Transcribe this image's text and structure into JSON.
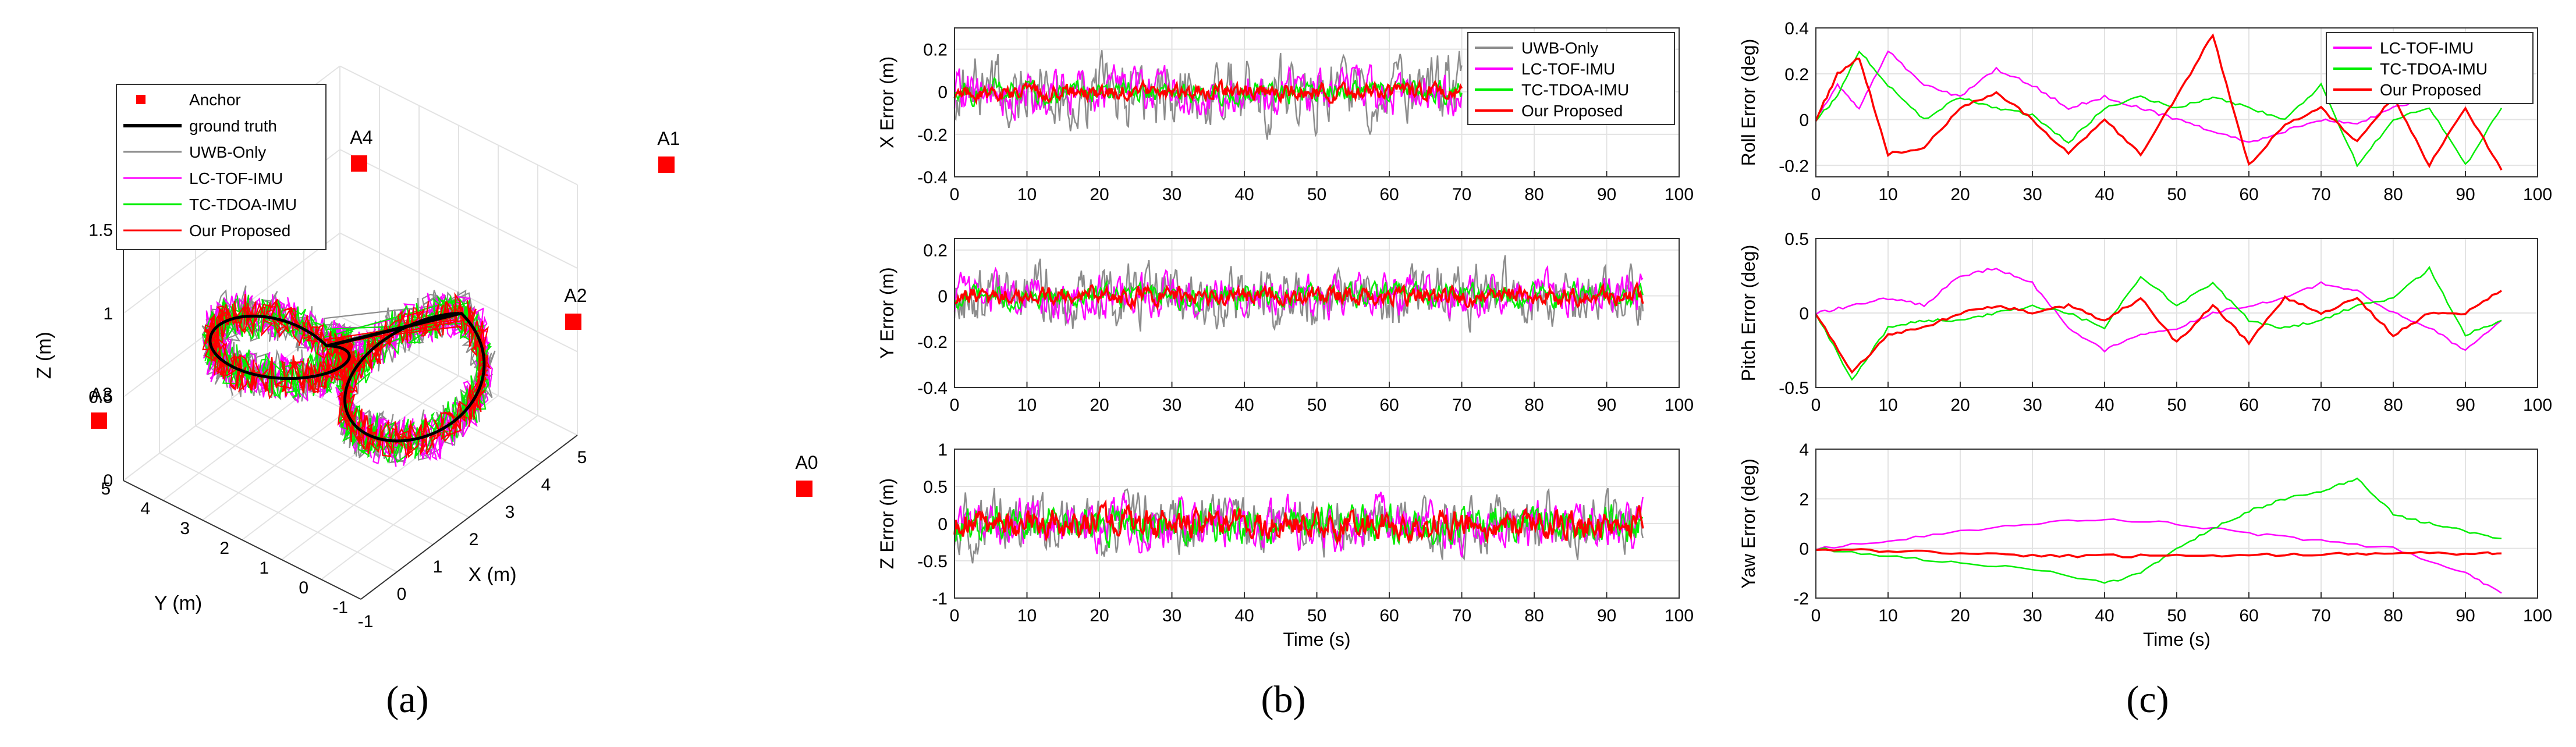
{
  "captions": {
    "a": "(a)",
    "b": "(b)",
    "c": "(c)"
  },
  "colors": {
    "uwb": "#8c8c8c",
    "lc": "#ff00ff",
    "tc": "#00ee00",
    "ours": "#ff0000",
    "truth": "#000000",
    "anchor": "#ff0000"
  },
  "chart_data": [
    {
      "id": "a",
      "type": "scatter",
      "title": "",
      "xlabel": "X (m)",
      "ylabel": "Y (m)",
      "zlabel": "Z (m)",
      "xlim": [
        -1,
        5
      ],
      "ylim": [
        -1,
        5
      ],
      "zlim": [
        0,
        1.5
      ],
      "xticks": [
        "-1",
        "0",
        "1",
        "2",
        "3",
        "4",
        "5"
      ],
      "yticks": [
        "-1",
        "0",
        "1",
        "2",
        "3",
        "4",
        "5"
      ],
      "zticks": [
        "0",
        "0.5",
        "1",
        "1.5"
      ],
      "legend": [
        "Anchor",
        "ground truth",
        "UWB-Only",
        "LC-TOF-IMU",
        "TC-TDOA-IMU",
        "Our Proposed"
      ],
      "anchors": [
        {
          "name": "A0",
          "x": 5,
          "y": -1,
          "z": 0
        },
        {
          "name": "A1",
          "x": 5,
          "y": 5,
          "z": 1.5
        },
        {
          "name": "A3",
          "x": -1,
          "y": 5,
          "z": 0
        },
        {
          "name": "A4",
          "x": -1,
          "y": -1,
          "z": 1.5
        },
        {
          "name": "A2",
          "x": 2,
          "y": 2,
          "z": 0.55
        }
      ],
      "trajectory": {
        "shape": "figure-eight",
        "center1": [
          0.7,
          2.6
        ],
        "center2": [
          2.9,
          1.2
        ],
        "radius": 1.3,
        "z": [
          0.3,
          0.9
        ]
      }
    },
    {
      "id": "b1",
      "type": "line",
      "title": "",
      "xlabel": "",
      "ylabel": "X Error (m)",
      "xlim": [
        0,
        100
      ],
      "ylim": [
        -0.4,
        0.3
      ],
      "xticks": [
        "0",
        "10",
        "20",
        "30",
        "40",
        "50",
        "60",
        "70",
        "80",
        "90",
        "100"
      ],
      "yticks": [
        "-0.4",
        "-0.2",
        "0",
        "0.2"
      ],
      "legend_position": "top-right",
      "series": [
        {
          "name": "UWB-Only",
          "amplitude": 0.12,
          "duration": 70
        },
        {
          "name": "LC-TOF-IMU",
          "amplitude": 0.08,
          "duration": 70
        },
        {
          "name": "TC-TDOA-IMU",
          "amplitude": 0.04,
          "duration": 70
        },
        {
          "name": "Our Proposed",
          "amplitude": 0.03,
          "duration": 70
        }
      ]
    },
    {
      "id": "b2",
      "type": "line",
      "title": "",
      "xlabel": "",
      "ylabel": "Y Error (m)",
      "xlim": [
        0,
        100
      ],
      "ylim": [
        -0.4,
        0.25
      ],
      "xticks": [
        "0",
        "10",
        "20",
        "30",
        "40",
        "50",
        "60",
        "70",
        "80",
        "90",
        "100"
      ],
      "yticks": [
        "-0.4",
        "-0.2",
        "0",
        "0.2"
      ],
      "series": [
        {
          "name": "UWB-Only",
          "amplitude": 0.1,
          "duration": 95
        },
        {
          "name": "LC-TOF-IMU",
          "amplitude": 0.07,
          "duration": 95
        },
        {
          "name": "TC-TDOA-IMU",
          "amplitude": 0.04,
          "duration": 95
        },
        {
          "name": "Our Proposed",
          "amplitude": 0.03,
          "duration": 95
        }
      ]
    },
    {
      "id": "b3",
      "type": "line",
      "title": "",
      "xlabel": "Time (s)",
      "ylabel": "Z Error (m)",
      "xlim": [
        0,
        100
      ],
      "ylim": [
        -1,
        1
      ],
      "xticks": [
        "0",
        "10",
        "20",
        "30",
        "40",
        "50",
        "60",
        "70",
        "80",
        "90",
        "100"
      ],
      "yticks": [
        "-1",
        "-0.5",
        "0",
        "0.5",
        "1"
      ],
      "series": [
        {
          "name": "UWB-Only",
          "amplitude": 0.3,
          "duration": 95
        },
        {
          "name": "LC-TOF-IMU",
          "amplitude": 0.25,
          "duration": 95
        },
        {
          "name": "TC-TDOA-IMU",
          "amplitude": 0.2,
          "duration": 95
        },
        {
          "name": "Our Proposed",
          "amplitude": 0.15,
          "duration": 95
        }
      ]
    },
    {
      "id": "c1",
      "type": "line",
      "title": "",
      "xlabel": "",
      "ylabel": "Roll Error (deg)",
      "xlim": [
        0,
        100
      ],
      "ylim": [
        -0.25,
        0.4
      ],
      "xticks": [
        "0",
        "10",
        "20",
        "30",
        "40",
        "50",
        "60",
        "70",
        "80",
        "90",
        "100"
      ],
      "yticks": [
        "-0.2",
        "0",
        "0.2",
        "0.4"
      ],
      "legend_position": "top-right",
      "series": [
        {
          "name": "LC-TOF-IMU",
          "x": [
            0,
            3,
            6,
            10,
            15,
            20,
            25,
            30,
            35,
            40,
            45,
            50,
            55,
            60,
            65,
            70,
            75,
            80,
            85,
            90,
            95
          ],
          "y": [
            0,
            0.15,
            0.05,
            0.3,
            0.15,
            0.1,
            0.22,
            0.15,
            0.05,
            0.1,
            0.05,
            0.0,
            -0.05,
            -0.1,
            -0.05,
            0.0,
            -0.02,
            0.05,
            0.1,
            0.1,
            0.1
          ]
        },
        {
          "name": "TC-TDOA-IMU",
          "x": [
            0,
            3,
            6,
            10,
            15,
            20,
            25,
            30,
            35,
            40,
            45,
            50,
            55,
            60,
            65,
            70,
            75,
            80,
            85,
            90,
            95
          ],
          "y": [
            0,
            0.1,
            0.3,
            0.15,
            0.0,
            0.1,
            0.05,
            0.02,
            -0.1,
            0.05,
            0.1,
            0.05,
            0.1,
            0.05,
            0.0,
            0.15,
            -0.2,
            0.0,
            0.05,
            -0.2,
            0.05
          ]
        },
        {
          "name": "Our Proposed",
          "x": [
            0,
            3,
            6,
            10,
            15,
            20,
            25,
            30,
            35,
            40,
            45,
            50,
            55,
            60,
            65,
            70,
            75,
            80,
            85,
            90,
            95
          ],
          "y": [
            0,
            0.2,
            0.27,
            -0.15,
            -0.12,
            0.05,
            0.12,
            0.0,
            -0.15,
            0.0,
            -0.15,
            0.1,
            0.37,
            -0.2,
            -0.02,
            0.05,
            -0.1,
            0.1,
            -0.2,
            0.05,
            -0.22
          ]
        }
      ]
    },
    {
      "id": "c2",
      "type": "line",
      "title": "",
      "xlabel": "",
      "ylabel": "Pitch Error (deg)",
      "xlim": [
        0,
        100
      ],
      "ylim": [
        -0.5,
        0.5
      ],
      "xticks": [
        "0",
        "10",
        "20",
        "30",
        "40",
        "50",
        "60",
        "70",
        "80",
        "90",
        "100"
      ],
      "yticks": [
        "-0.5",
        "0",
        "0.5"
      ],
      "series": [
        {
          "name": "LC-TOF-IMU",
          "x": [
            0,
            5,
            10,
            15,
            20,
            25,
            30,
            35,
            40,
            45,
            50,
            55,
            60,
            65,
            70,
            75,
            80,
            85,
            90,
            95
          ],
          "y": [
            0,
            0.05,
            0.1,
            0.05,
            0.25,
            0.3,
            0.2,
            -0.1,
            -0.25,
            -0.15,
            -0.1,
            0.0,
            0.05,
            0.1,
            0.2,
            0.15,
            0.0,
            -0.1,
            -0.25,
            -0.05
          ]
        },
        {
          "name": "TC-TDOA-IMU",
          "x": [
            0,
            5,
            10,
            15,
            20,
            25,
            30,
            35,
            40,
            45,
            50,
            55,
            60,
            65,
            70,
            75,
            80,
            85,
            90,
            95
          ],
          "y": [
            0,
            -0.45,
            -0.1,
            -0.05,
            -0.05,
            0.0,
            0.05,
            0.0,
            -0.1,
            0.25,
            0.05,
            0.2,
            -0.05,
            -0.1,
            -0.05,
            0.05,
            0.1,
            0.3,
            -0.15,
            -0.05
          ]
        },
        {
          "name": "Our Proposed",
          "x": [
            0,
            5,
            10,
            15,
            20,
            25,
            30,
            35,
            40,
            45,
            50,
            55,
            60,
            65,
            70,
            75,
            80,
            85,
            90,
            95
          ],
          "y": [
            0,
            -0.4,
            -0.15,
            -0.1,
            0.0,
            0.05,
            0.0,
            0.05,
            -0.05,
            0.1,
            -0.2,
            0.05,
            -0.2,
            0.1,
            0.0,
            0.1,
            -0.15,
            0.0,
            0.0,
            0.15
          ]
        }
      ]
    },
    {
      "id": "c3",
      "type": "line",
      "title": "",
      "xlabel": "Time (s)",
      "ylabel": "Yaw Error (deg)",
      "xlim": [
        0,
        100
      ],
      "ylim": [
        -2,
        4
      ],
      "xticks": [
        "0",
        "10",
        "20",
        "30",
        "40",
        "50",
        "60",
        "70",
        "80",
        "90",
        "100"
      ],
      "yticks": [
        "-2",
        "0",
        "2",
        "4"
      ],
      "series": [
        {
          "name": "LC-TOF-IMU",
          "x": [
            0,
            10,
            20,
            30,
            40,
            50,
            60,
            70,
            80,
            90,
            95
          ],
          "y": [
            0,
            0.3,
            0.7,
            1.0,
            1.2,
            1.0,
            0.6,
            0.3,
            0.0,
            -1.0,
            -1.8
          ]
        },
        {
          "name": "TC-TDOA-IMU",
          "x": [
            0,
            10,
            20,
            30,
            40,
            45,
            50,
            55,
            60,
            65,
            70,
            75,
            80,
            85,
            90,
            95
          ],
          "y": [
            0,
            -0.3,
            -0.6,
            -0.8,
            -1.4,
            -1.0,
            0.0,
            0.8,
            1.5,
            2.0,
            2.3,
            2.8,
            1.4,
            1.0,
            0.7,
            0.4
          ]
        },
        {
          "name": "Our Proposed",
          "x": [
            0,
            10,
            20,
            30,
            40,
            50,
            60,
            70,
            80,
            90,
            95
          ],
          "y": [
            0,
            -0.1,
            -0.2,
            -0.3,
            -0.3,
            -0.3,
            -0.25,
            -0.25,
            -0.2,
            -0.2,
            -0.2
          ]
        }
      ]
    }
  ]
}
